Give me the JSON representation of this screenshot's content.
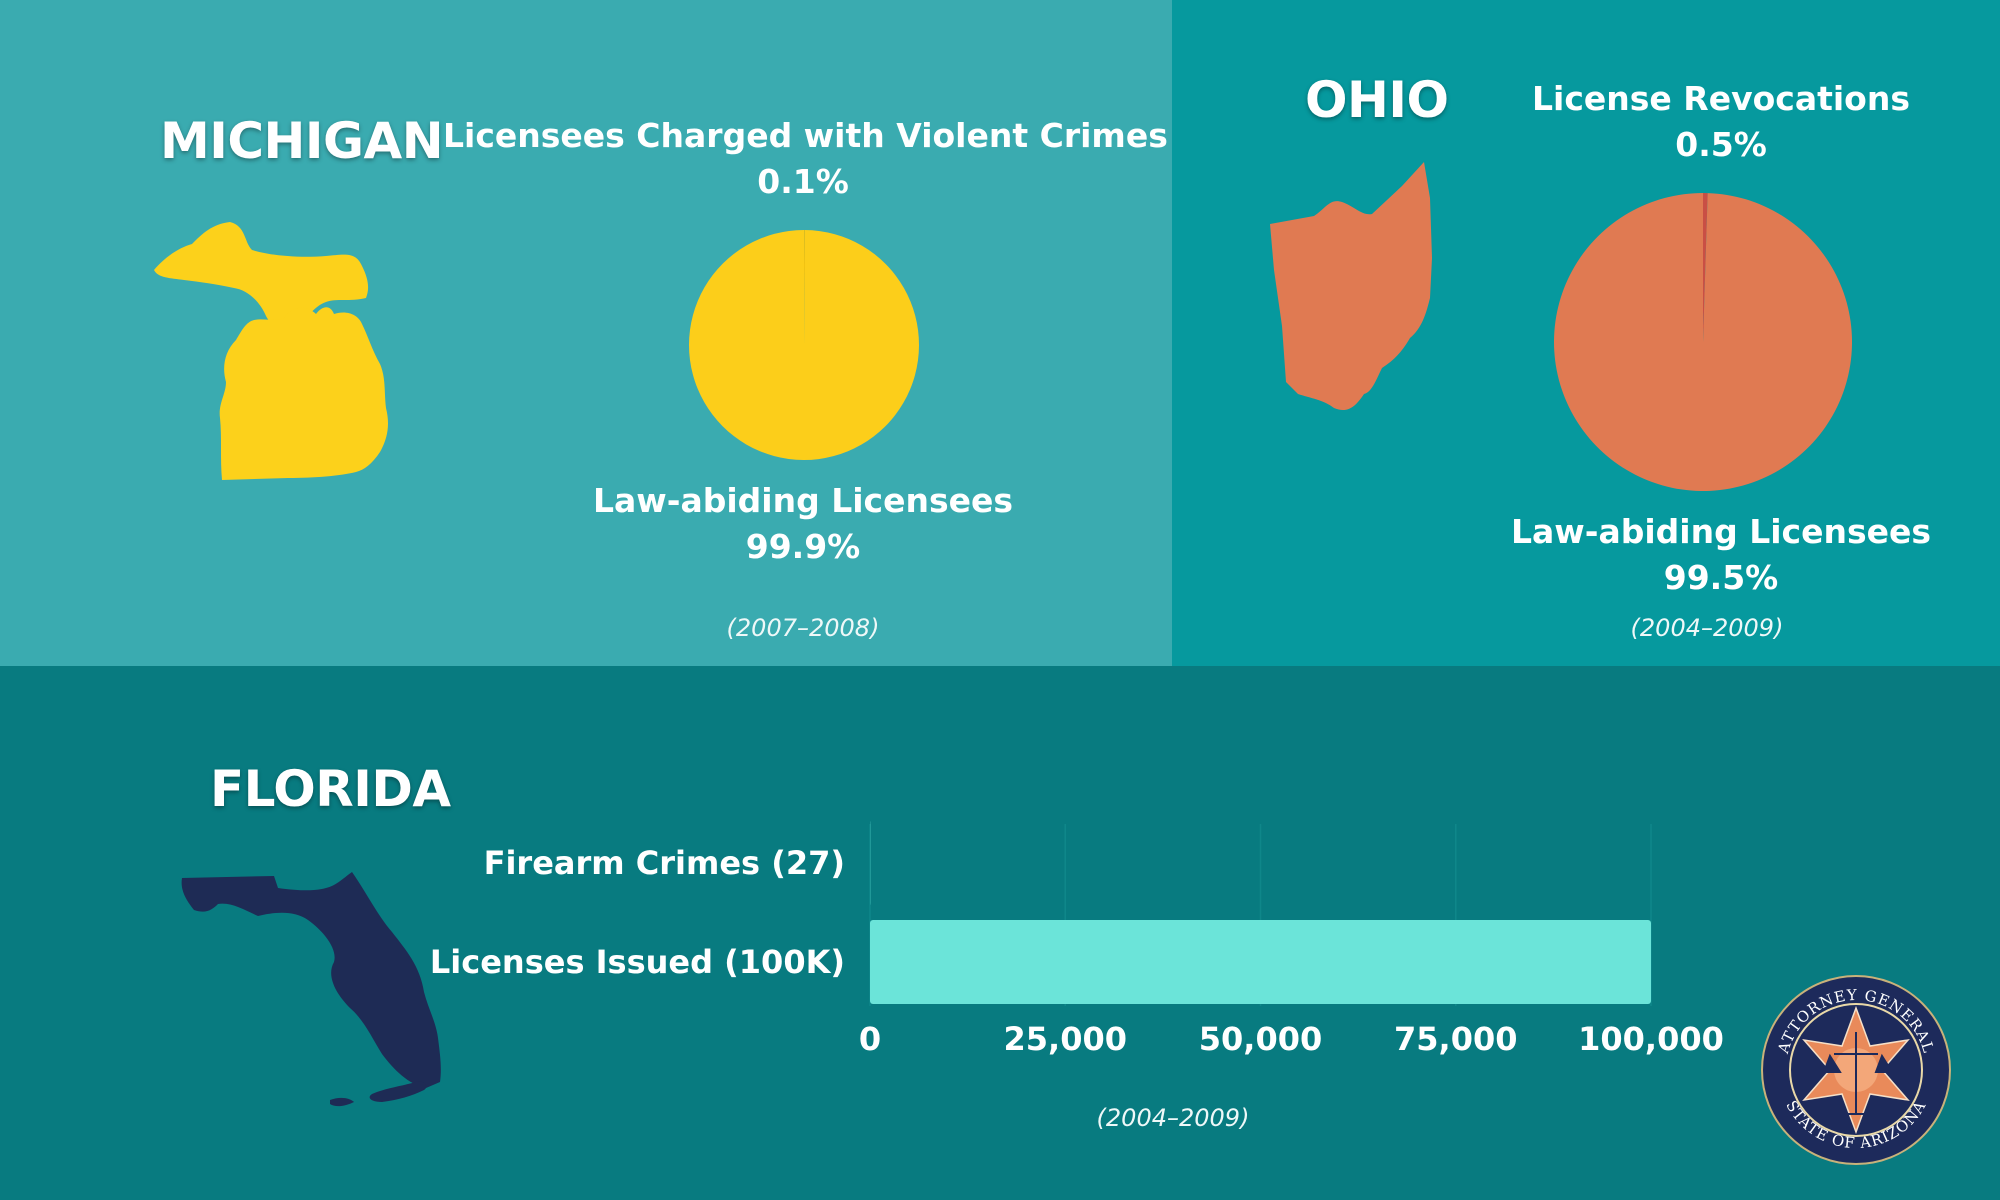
{
  "michigan": {
    "title": "MICHIGAN",
    "period": "(2007–2008)",
    "colors": {
      "main": "#fcce1a",
      "minor": "#e8b80a",
      "shape": "#fcd11b"
    }
  },
  "ohio": {
    "title": "OHIO",
    "period": "(2004–2009)",
    "colors": {
      "main": "#e07a52",
      "minor": "#c94f45",
      "shape": "#e07a52"
    }
  },
  "florida": {
    "title": "FLORIDA",
    "period": "(2004–2009)",
    "colors": {
      "bar": "#6be4d9",
      "grid": "#0f878a",
      "shape": "#1e2b55"
    }
  },
  "seal": {
    "text_top": "ATTORNEY GENERAL",
    "text_bottom": "STATE OF ARIZONA",
    "colors": {
      "ring": "#1d2a5b",
      "star": "#e98a5a",
      "inner": "#f3a779"
    }
  },
  "chart_data": [
    {
      "type": "pie",
      "slices": [
        {
          "label": "Licensees Charged with Violent Crimes",
          "value": 0.1,
          "value_label": "0.1%"
        },
        {
          "label": "Law-abiding Licensees",
          "value": 99.9,
          "value_label": "99.9%"
        }
      ]
    },
    {
      "type": "pie",
      "slices": [
        {
          "label": "License Revocations",
          "value": 0.5,
          "value_label": "0.5%"
        },
        {
          "label": "Law-abiding Licensees",
          "value": 99.5,
          "value_label": "99.5%"
        }
      ]
    },
    {
      "type": "bar",
      "orientation": "horizontal",
      "categories": [
        "Firearm Crimes (27)",
        "Licenses Issued (100K)"
      ],
      "values": [
        27,
        100000
      ],
      "xlim": [
        0,
        100000
      ],
      "xticks": [
        0,
        25000,
        50000,
        75000,
        100000
      ],
      "xtick_labels": [
        "0",
        "25,000",
        "50,000",
        "75,000",
        "100,000"
      ],
      "grid": true
    }
  ]
}
